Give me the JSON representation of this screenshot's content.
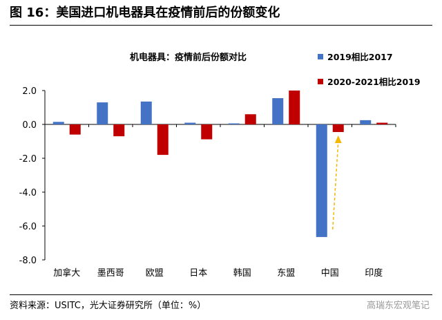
{
  "title": "图 16：美国进口机电器具在疫情前后的份额变化",
  "source": "资料来源：USITC，光大证券研究所（单位：%）",
  "watermark": "高瑞东宏观笔记",
  "chart_data": {
    "type": "bar",
    "title": "机电器具：疫情前后份额对比",
    "categories": [
      "加拿大",
      "墨西哥",
      "欧盟",
      "日本",
      "韩国",
      "东盟",
      "中国",
      "印度"
    ],
    "series": [
      {
        "name": "2019相比2017",
        "color": "#4472C4",
        "values": [
          0.15,
          1.3,
          1.35,
          0.1,
          0.06,
          1.55,
          -6.65,
          0.25
        ]
      },
      {
        "name": "2020-2021相比2019",
        "color": "#C00000",
        "values": [
          -0.6,
          -0.7,
          -1.8,
          -0.88,
          0.6,
          2.0,
          -0.45,
          0.1
        ]
      }
    ],
    "ylim": [
      -8,
      2
    ],
    "yticks": [
      "2.0",
      "0.0",
      "-2.0",
      "-4.0",
      "-6.0",
      "-8.0"
    ],
    "ytick_values": [
      2,
      0,
      -2,
      -4,
      -6,
      -8
    ],
    "legend": "top-right"
  }
}
